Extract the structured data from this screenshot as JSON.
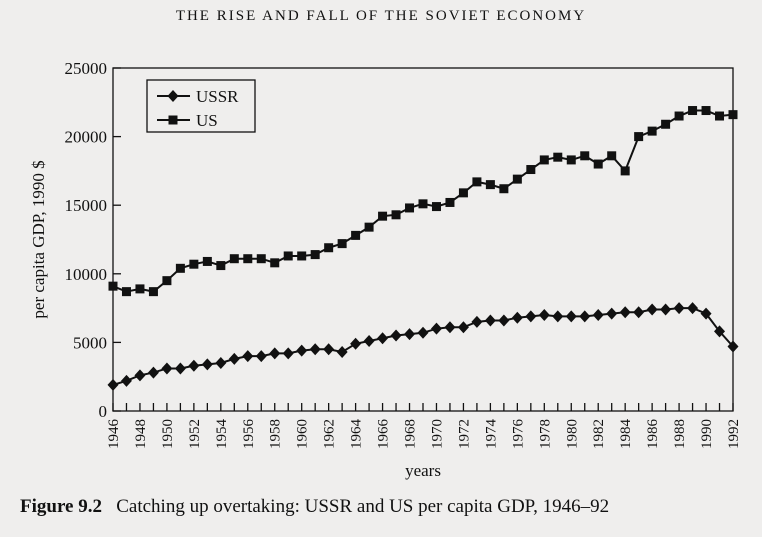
{
  "header": "THE RISE AND FALL OF THE SOVIET ECONOMY",
  "caption": {
    "label": "Figure 9.2",
    "text": "Catching up overtaking: USSR and US per capita GDP, 1946–92"
  },
  "chart_data": {
    "type": "line",
    "title": "",
    "xlabel": "years",
    "ylabel": "per capita GDP, 1990 $",
    "xlim": [
      1946,
      1992
    ],
    "ylim": [
      0,
      25000
    ],
    "yticks": [
      0,
      5000,
      10000,
      15000,
      20000,
      25000
    ],
    "xticks": [
      1946,
      1948,
      1950,
      1952,
      1954,
      1956,
      1958,
      1960,
      1962,
      1964,
      1966,
      1968,
      1970,
      1972,
      1974,
      1976,
      1978,
      1980,
      1982,
      1984,
      1986,
      1988,
      1990,
      1992
    ],
    "legend_position": "top-left",
    "x": [
      1946,
      1947,
      1948,
      1949,
      1950,
      1951,
      1952,
      1953,
      1954,
      1955,
      1956,
      1957,
      1958,
      1959,
      1960,
      1961,
      1962,
      1963,
      1964,
      1965,
      1966,
      1967,
      1968,
      1969,
      1970,
      1971,
      1972,
      1973,
      1974,
      1975,
      1976,
      1977,
      1978,
      1979,
      1980,
      1981,
      1982,
      1983,
      1984,
      1985,
      1986,
      1987,
      1988,
      1989,
      1990,
      1991,
      1992
    ],
    "series": [
      {
        "name": "USSR",
        "marker": "diamond",
        "values": [
          1900,
          2200,
          2600,
          2800,
          3100,
          3100,
          3300,
          3400,
          3500,
          3800,
          4000,
          4000,
          4200,
          4200,
          4400,
          4500,
          4500,
          4300,
          4900,
          5100,
          5300,
          5500,
          5600,
          5700,
          6000,
          6100,
          6100,
          6500,
          6600,
          6600,
          6800,
          6900,
          7000,
          6900,
          6900,
          6900,
          7000,
          7100,
          7200,
          7200,
          7400,
          7400,
          7500,
          7500,
          7100,
          5800,
          4700
        ]
      },
      {
        "name": "US",
        "marker": "square",
        "values": [
          9100,
          8700,
          8900,
          8700,
          9500,
          10400,
          10700,
          10900,
          10600,
          11100,
          11100,
          11100,
          10800,
          11300,
          11300,
          11400,
          11900,
          12200,
          12800,
          13400,
          14200,
          14300,
          14800,
          15100,
          14900,
          15200,
          15900,
          16700,
          16500,
          16200,
          16900,
          17600,
          18300,
          18500,
          18300,
          18600,
          18000,
          18600,
          17500,
          20000,
          20400,
          20900,
          21500,
          21900,
          21900,
          21500,
          21600
        ]
      }
    ]
  }
}
